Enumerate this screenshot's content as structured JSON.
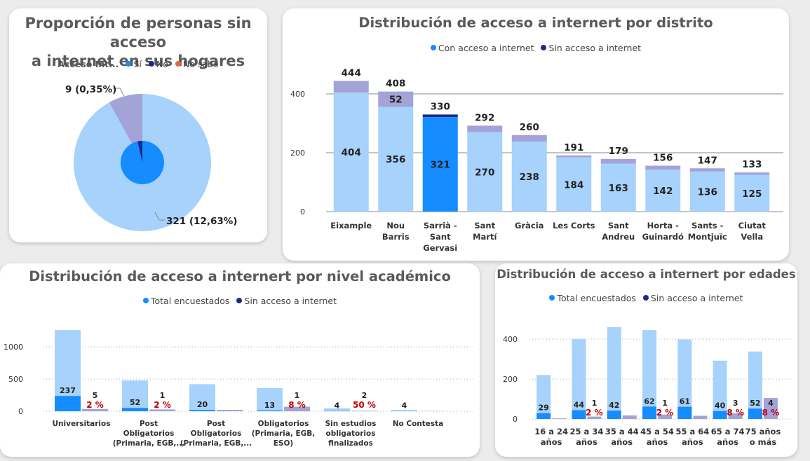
{
  "colors": {
    "light": "#a7d2fb",
    "blue": "#158cff",
    "navy": "#1a2a8c",
    "purple": "#a3a3d8",
    "orange": "#e26a3a",
    "red": "#c00000",
    "text": "#222222"
  },
  "pie_card": {
    "title_l1": "Proporción de personas sin acceso",
    "title_l2": "a internet en sus hogares",
    "legend_title": "Acceso Int...",
    "legend": [
      {
        "label": "Sí",
        "color": "#158cff"
      },
      {
        "label": "No",
        "color": "#1a2a8c"
      },
      {
        "label": "No sabe",
        "color": "#e26a3a"
      }
    ]
  },
  "district_card": {
    "title": "Distribución de acceso a internert por distrito",
    "legend": [
      {
        "label": "Con acceso a internet",
        "color": "#158cff"
      },
      {
        "label": "Sin acceso a internet",
        "color": "#1a2a8c"
      }
    ]
  },
  "academic_card": {
    "title": "Distribución de acceso a internert por nivel académico",
    "legend": [
      {
        "label": "Total encuestados",
        "color": "#158cff"
      },
      {
        "label": "Sin acceso a internet",
        "color": "#1a2a8c"
      }
    ]
  },
  "age_card": {
    "title": "Distribución de acceso a internert por edades",
    "legend": [
      {
        "label": "Total encuestados",
        "color": "#158cff"
      },
      {
        "label": "Sin acceso a internet",
        "color": "#1a2a8c"
      }
    ]
  },
  "chart_data": [
    {
      "id": "pie",
      "type": "pie",
      "outer_total_fraction": 0.92,
      "outer_purple_fraction": 0.08,
      "inner_navy_fraction": 0.035,
      "labels": [
        {
          "text": "9 (0,35%)",
          "slice": "No"
        },
        {
          "text": "321 (12,63%)",
          "slice": "Sí"
        }
      ]
    },
    {
      "id": "district",
      "type": "bar",
      "ylim": [
        0,
        470
      ],
      "yticks": [
        0,
        200,
        400
      ],
      "categories": [
        [
          "Eixample"
        ],
        [
          "Nou",
          "Barris"
        ],
        [
          "Sarrià -",
          "Sant",
          "Gervasi"
        ],
        [
          "Sant",
          "Martí"
        ],
        [
          "Gràcia"
        ],
        [
          "Les Corts"
        ],
        [
          "Sant",
          "Andreu"
        ],
        [
          "Horta -",
          "Guinardó"
        ],
        [
          "Sants -",
          "Montjuïc"
        ],
        [
          "Ciutat",
          "Vella"
        ]
      ],
      "with_access": [
        404,
        356,
        321,
        270,
        238,
        184,
        163,
        142,
        136,
        125
      ],
      "totals": [
        444,
        408,
        330,
        292,
        260,
        191,
        179,
        156,
        147,
        133
      ],
      "without_access_label": [
        null,
        52,
        null,
        null,
        null,
        null,
        null,
        null,
        null,
        null
      ],
      "highlight_index": 2
    },
    {
      "id": "academic",
      "type": "bar",
      "ylim": [
        0,
        1350
      ],
      "yticks": [
        0,
        500,
        1000
      ],
      "categories": [
        [
          "Universitarios"
        ],
        [
          "Post",
          "Obligatorios",
          "(Primaria, EGB,..."
        ],
        [
          "Post",
          "Obligatorios",
          "(Primaria, EGB,..."
        ],
        [
          "Obligatorios",
          "(Primaria, EGB,",
          "ESO)"
        ],
        [
          "Sin estudios",
          "obligatorios",
          "finalizados"
        ],
        [
          "No Contesta"
        ]
      ],
      "total": [
        1260,
        480,
        420,
        360,
        45,
        18
      ],
      "total_dark": [
        237,
        52,
        20,
        13,
        4,
        4
      ],
      "sin_acceso": [
        35,
        28,
        22,
        70,
        8,
        4
      ],
      "sin_acceso_label": [
        5,
        1,
        null,
        1,
        2,
        null
      ],
      "pct_label": [
        "2 %",
        "2 %",
        null,
        "8 %",
        "50 %",
        null
      ]
    },
    {
      "id": "age",
      "type": "bar",
      "ylim": [
        0,
        470
      ],
      "yticks": [
        0,
        200,
        400
      ],
      "categories": [
        [
          "16 a 24",
          "años"
        ],
        [
          "25 a 34",
          "años"
        ],
        [
          "35 a 44",
          "años"
        ],
        [
          "45 a 54",
          "años"
        ],
        [
          "55 a 64",
          "años"
        ],
        [
          "65 a 74",
          "años"
        ],
        [
          "75 años",
          "o más"
        ]
      ],
      "total": [
        220,
        400,
        460,
        445,
        398,
        292,
        338
      ],
      "total_dark": [
        29,
        44,
        42,
        62,
        61,
        40,
        52
      ],
      "sin_acceso": [
        3,
        12,
        18,
        22,
        16,
        28,
        105
      ],
      "sin_acceso_label": [
        null,
        1,
        null,
        1,
        null,
        3,
        4
      ],
      "pct_label": [
        null,
        "2 %",
        null,
        "2 %",
        null,
        "8 %",
        "8 %"
      ]
    }
  ]
}
